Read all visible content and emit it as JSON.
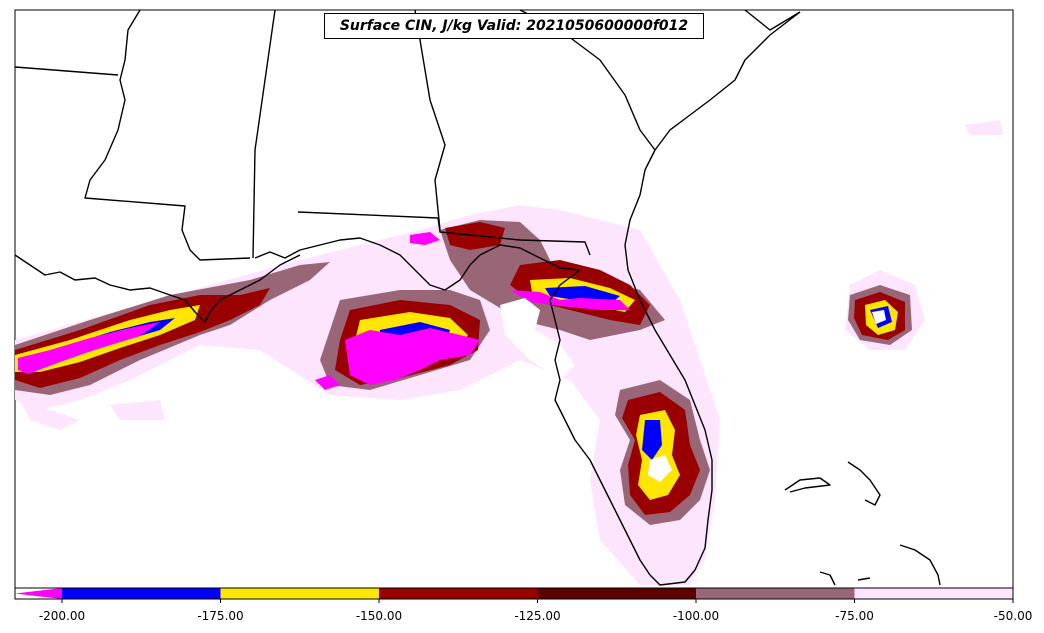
{
  "title": "Surface CIN, J/kg Valid: 2021050600000f012",
  "colorbar": {
    "extend_arrow_color": "#ff00ff",
    "ticks": [
      "-200.00",
      "-175.00",
      "-150.00",
      "-125.00",
      "-100.00",
      "-75.00",
      "-50.00"
    ],
    "bins": [
      {
        "range": [
          -200,
          -175
        ],
        "color": "#0000ff"
      },
      {
        "range": [
          -175,
          -150
        ],
        "color": "#ffe600"
      },
      {
        "range": [
          -150,
          -125
        ],
        "color": "#990000"
      },
      {
        "range": [
          -125,
          -100
        ],
        "color": "#5c0000"
      },
      {
        "range": [
          -100,
          -75
        ],
        "color": "#996677"
      },
      {
        "range": [
          -75,
          -50
        ],
        "color": "#fde6fd"
      }
    ]
  },
  "map": {
    "region": "Southeast United States and Florida",
    "land_color": "#ffffff",
    "boundary_color": "#000000"
  }
}
